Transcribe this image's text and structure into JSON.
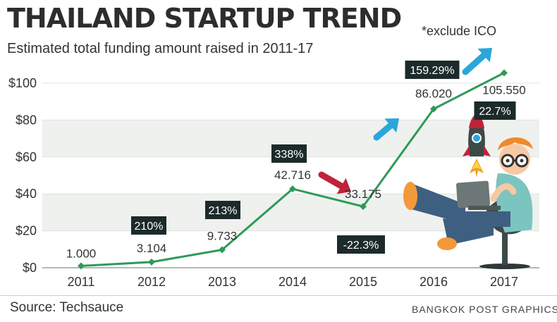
{
  "header": {
    "title": "THAILAND STARTUP TREND",
    "subtitle": "Estimated total funding amount raised in 2011-17",
    "note": "*exclude ICO"
  },
  "footer": {
    "source": "Source: Techsauce",
    "credit": "BANGKOK POST GRAPHICS"
  },
  "chart_data": {
    "type": "line",
    "title": "THAILAND STARTUP TREND",
    "subtitle": "Estimated total funding amount raised in 2011-17",
    "x": [
      "2011",
      "2012",
      "2013",
      "2014",
      "2015",
      "2016",
      "2017"
    ],
    "series": [
      {
        "name": "Estimated total funding",
        "values": [
          1.0,
          3.104,
          9.733,
          42.716,
          33.175,
          86.02,
          105.55
        ],
        "value_labels": [
          "1.000",
          "3.104",
          "9.733",
          "42.716",
          "33.175",
          "86.020",
          "105.550"
        ]
      }
    ],
    "growth_labels": [
      {
        "year": "2012",
        "text": "210%",
        "direction": "up"
      },
      {
        "year": "2013",
        "text": "213%",
        "direction": "up"
      },
      {
        "year": "2014",
        "text": "338%",
        "direction": "up"
      },
      {
        "year": "2015",
        "text": "-22.3%",
        "direction": "down"
      },
      {
        "year": "2016",
        "text": "159.29%",
        "direction": "up"
      },
      {
        "year": "2017",
        "text": "22.7%",
        "direction": "up"
      }
    ],
    "yticks": [
      "$0",
      "$20",
      "$40",
      "$60",
      "$80",
      "$100"
    ],
    "ytick_values": [
      0,
      20,
      40,
      60,
      80,
      100
    ],
    "ylim": [
      0,
      100
    ],
    "xlabel": "",
    "ylabel": "",
    "grid": true,
    "colors": {
      "line": "#2e9a57",
      "band": "#eef1ee",
      "label_box": "#1c2a2a",
      "arrow_up": "#2aa6dc",
      "arrow_down": "#c0223a"
    }
  },
  "illustration": {
    "rocket_icon": "rocket-icon",
    "person_icon": "person-with-laptop-icon"
  }
}
